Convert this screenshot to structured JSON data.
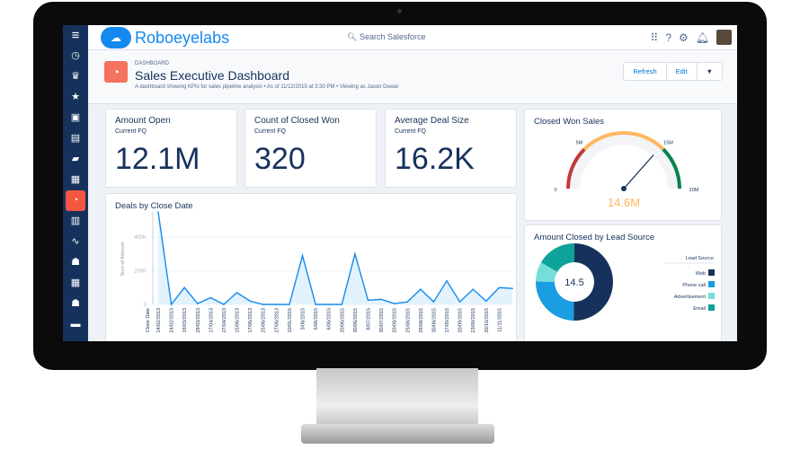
{
  "brand": "Roboeyelabs",
  "search_placeholder": "Search Salesforce",
  "header": {
    "kicker": "DASHBOARD",
    "title": "Sales Executive Dashboard",
    "subtitle": "A dashboard showing KPIs for sales pipeline analysis  •  As of 11/12/2015 at 3:30 PM  •  Viewing as Jason Dewar",
    "refresh": "Refresh",
    "edit": "Edit"
  },
  "kpis": [
    {
      "title": "Amount Open",
      "sub": "Current FQ",
      "value": "12.1M"
    },
    {
      "title": "Count of Closed Won",
      "sub": "Current FQ",
      "value": "320"
    },
    {
      "title": "Average Deal Size",
      "sub": "Current FQ",
      "value": "16.2K"
    }
  ],
  "accent": "#1589ee",
  "active_nav_color": "#f4563f",
  "sidebar_icons": [
    "menu-icon",
    "clock-icon",
    "crown-icon",
    "star-icon",
    "inbox-icon",
    "clipboard-icon",
    "folder-icon",
    "calendar-icon",
    "dashboard-icon",
    "case-icon",
    "pulse-icon",
    "people-icon",
    "calendar-grid-icon",
    "groups-icon",
    "briefcase-icon"
  ],
  "chart_data": [
    {
      "type": "area",
      "title": "Deals by Close Date",
      "xlabel": "Close Date",
      "ylabel": "Sum of Amount",
      "ylim": [
        0,
        550000
      ],
      "yticks": [
        "0",
        "200K",
        "400K"
      ],
      "ytick_values": [
        0,
        200000,
        400000
      ],
      "categories": [
        "14/02/2013",
        "24/02/2013",
        "19/03/2013",
        "29/03/2013",
        "17/04/2013",
        "27/04/2013",
        "15/06/2013",
        "17/06/2013",
        "25/06/2013",
        "27/06/2013",
        "10/01/2015",
        "3/06/2015",
        "5/06/2015",
        "6/06/2015",
        "20/06/2015",
        "30/06/2015",
        "8/07/2015",
        "30/07/2015",
        "20/08/2015",
        "25/08/2015",
        "29/08/2015",
        "30/08/2015",
        "17/09/2015",
        "20/09/2015",
        "23/09/2015",
        "20/10/2015",
        "11/11/2015",
        ""
      ],
      "values": [
        550000,
        0,
        100000,
        5000,
        40000,
        0,
        70000,
        20000,
        0,
        0,
        0,
        290000,
        0,
        0,
        0,
        300000,
        25000,
        30000,
        5000,
        15000,
        90000,
        15000,
        140000,
        15000,
        90000,
        20000,
        100000,
        95000
      ],
      "color": "#1589ee",
      "grid": true
    },
    {
      "type": "gauge",
      "title": "Closed Won Sales",
      "value": 14.6,
      "value_label": "14.6M",
      "min": 0,
      "max": 20,
      "tick_labels": [
        "0",
        "5M",
        "15M",
        "20M"
      ],
      "bands": [
        {
          "from": 0,
          "to": 5,
          "color": "#c23934"
        },
        {
          "from": 5,
          "to": 15,
          "color": "#ffb75d"
        },
        {
          "from": 15,
          "to": 20,
          "color": "#04844b"
        }
      ]
    },
    {
      "type": "pie",
      "title": "Amount Closed by Lead Source",
      "center_label": "14.5",
      "legend_title": "Lead Source",
      "legend": "right",
      "series": [
        {
          "name": "Web",
          "value": 7.3,
          "color": "#16325c"
        },
        {
          "name": "Phone call",
          "value": 3.6,
          "color": "#1b9de2"
        },
        {
          "name": "Advertisement",
          "value": 1.2,
          "color": "#76ded9"
        },
        {
          "name": "Email",
          "value": 2.4,
          "color": "#0ea39a"
        }
      ]
    }
  ]
}
